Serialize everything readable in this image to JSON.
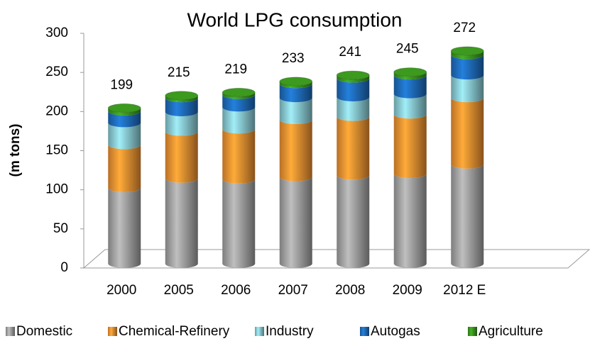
{
  "chart_data": {
    "type": "bar",
    "stacked": true,
    "title": "World LPG consumption",
    "y_label": "(m  tons)",
    "categories": [
      "2000",
      "2005",
      "2006",
      "2007",
      "2008",
      "2009",
      "2012 E"
    ],
    "totals": [
      199,
      215,
      219,
      233,
      241,
      245,
      272
    ],
    "series": [
      {
        "name": "Domestic",
        "color": "#a6a6a6",
        "values": [
          97,
          109,
          108,
          111,
          113,
          115,
          127
        ]
      },
      {
        "name": "Chemical-Refinery",
        "color": "#f79532",
        "values": [
          55,
          60,
          64,
          73,
          75,
          76,
          85
        ]
      },
      {
        "name": "Industry",
        "color": "#8ccfd8",
        "values": [
          28,
          25,
          28,
          28,
          25,
          26,
          29
        ]
      },
      {
        "name": "Autogas",
        "color": "#1f6fc0",
        "values": [
          15,
          18,
          16,
          18,
          24,
          24,
          26
        ]
      },
      {
        "name": "Agriculture",
        "color": "#3c9a1f",
        "values": [
          4,
          3,
          3,
          3,
          4,
          4,
          5
        ]
      }
    ],
    "ylim": [
      0,
      300
    ],
    "yticks": [
      0,
      50,
      100,
      150,
      200,
      250,
      300
    ]
  }
}
